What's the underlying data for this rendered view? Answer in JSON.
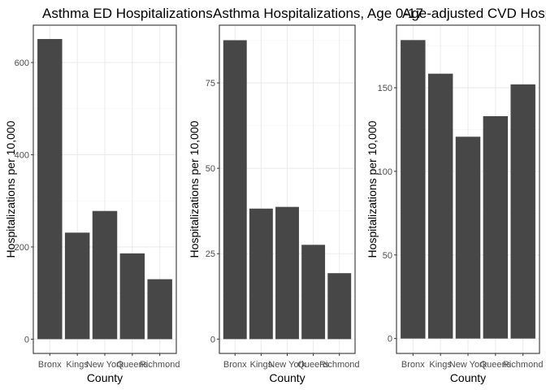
{
  "chart_data": [
    {
      "type": "bar",
      "title": "Asthma ED Hospitalizations",
      "xlabel": "County",
      "ylabel": "Hospitalizations per 10,000",
      "categories": [
        "Bronx",
        "Kings",
        "New York",
        "Queens",
        "Richmond"
      ],
      "values": [
        651,
        231,
        278,
        186,
        130
      ],
      "ylim": [
        -31,
        681
      ],
      "yticks": [
        0,
        200,
        400,
        600
      ],
      "grid": true,
      "bar_color": "#474747"
    },
    {
      "type": "bar",
      "title": "Asthma Hospitalizations, Age 0-17",
      "xlabel": "County",
      "ylabel": "Hospitalizations per 10,000",
      "categories": [
        "Bronx",
        "Kings",
        "New York",
        "Queens",
        "Richmond"
      ],
      "values": [
        87.5,
        38.2,
        38.7,
        27.6,
        19.3
      ],
      "ylim": [
        -4.2,
        91.9
      ],
      "yticks": [
        0,
        25,
        50,
        75
      ],
      "grid": true,
      "bar_color": "#474747"
    },
    {
      "type": "bar",
      "title": "Age-adjusted CVD Hospitalizations",
      "xlabel": "County",
      "ylabel": "Hospitalizations per 10,000",
      "categories": [
        "Bronx",
        "Kings",
        "New York",
        "Queens",
        "Richmond"
      ],
      "values": [
        178.5,
        158.4,
        120.7,
        133.0,
        152.0
      ],
      "ylim": [
        -8.9,
        187.4
      ],
      "yticks": [
        0,
        50,
        100,
        150
      ],
      "grid": true,
      "bar_color": "#474747"
    }
  ],
  "colors": {
    "panel_border": "#333333",
    "grid_major": "#ebebeb",
    "grid_minor": "#f5f5f5",
    "text": "#000000",
    "tick_text": "#4d4d4d"
  }
}
